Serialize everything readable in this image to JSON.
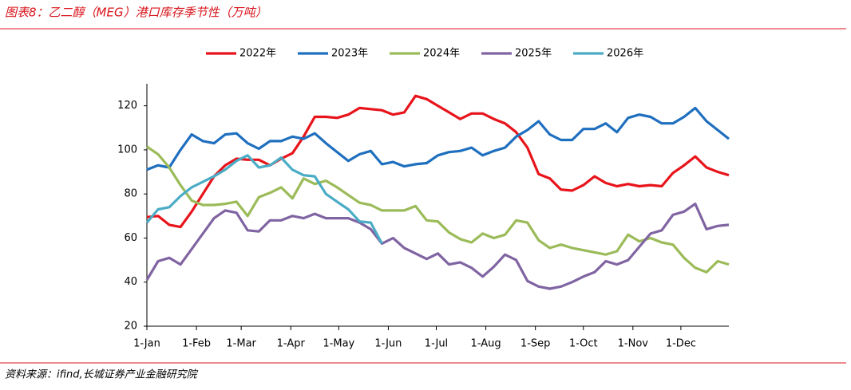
{
  "chart_data": {
    "type": "line",
    "title": "图表8：乙二醇（MEG）港口库存季节性（万吨）",
    "source": "资料来源：ifind,长城证券产业金融研究院",
    "x": [
      0,
      7,
      14,
      21,
      28,
      35,
      42,
      49,
      56,
      63,
      70,
      77,
      84,
      91,
      98,
      105,
      112,
      119,
      126,
      133,
      140,
      147,
      154,
      161,
      168,
      175,
      182,
      189,
      196,
      203,
      210,
      217,
      224,
      231,
      238,
      245,
      252,
      259,
      266,
      273,
      280,
      287,
      294,
      301,
      308,
      315,
      322,
      329,
      336,
      343,
      350,
      357,
      364
    ],
    "xlim": [
      0,
      364
    ],
    "xticks": [
      {
        "value": 0,
        "label": "1-Jan"
      },
      {
        "value": 31,
        "label": "1-Feb"
      },
      {
        "value": 59,
        "label": "1-Mar"
      },
      {
        "value": 90,
        "label": "1-Apr"
      },
      {
        "value": 120,
        "label": "1-May"
      },
      {
        "value": 151,
        "label": "1-Jun"
      },
      {
        "value": 181,
        "label": "1-Jul"
      },
      {
        "value": 212,
        "label": "1-Aug"
      },
      {
        "value": 243,
        "label": "1-Sep"
      },
      {
        "value": 273,
        "label": "1-Oct"
      },
      {
        "value": 304,
        "label": "1-Nov"
      },
      {
        "value": 334,
        "label": "1-Dec"
      }
    ],
    "ylim": [
      20,
      130
    ],
    "yticks": [
      20,
      40,
      60,
      80,
      100,
      120
    ],
    "legend": "top",
    "series": [
      {
        "name": "2022年",
        "color": "#e8141b",
        "values": [
          69.5,
          70,
          66,
          65,
          72,
          80,
          88,
          93,
          96,
          95.5,
          95.5,
          93,
          96,
          98.5,
          106,
          115,
          115,
          114.5,
          116,
          119,
          118.5,
          118,
          116,
          117,
          124.5,
          123,
          120,
          117,
          114,
          116.5,
          116.5,
          114,
          112,
          108,
          101,
          89,
          87,
          82,
          81.5,
          84,
          88,
          85,
          83.5,
          84.5,
          83.5,
          84,
          83.5,
          89.5,
          93,
          97,
          92,
          90,
          88.5
        ]
      },
      {
        "name": "2023年",
        "color": "#1f6fbf",
        "values": [
          91,
          93,
          92,
          100,
          107,
          104,
          103,
          107,
          107.5,
          103,
          100.5,
          104,
          104,
          106,
          105,
          107.5,
          103,
          99,
          95,
          98,
          99.5,
          93.5,
          94.5,
          92.5,
          93.5,
          94,
          97.5,
          99,
          99.5,
          101,
          97.5,
          99.5,
          101,
          106,
          109,
          113,
          107,
          104.5,
          104.5,
          109.5,
          109.5,
          112,
          108,
          114.5,
          116,
          115,
          112,
          112,
          115,
          119,
          113,
          109,
          105
        ]
      },
      {
        "name": "2024年",
        "color": "#9bbb59",
        "values": [
          101.5,
          98,
          92,
          84,
          77,
          75,
          75,
          75.5,
          76.5,
          70,
          78.5,
          80.5,
          83,
          78,
          87,
          84.5,
          86,
          83,
          79.5,
          76,
          75,
          72.5,
          72.5,
          72.5,
          74.5,
          68,
          67.5,
          62.5,
          59.5,
          58,
          62,
          60,
          61.5,
          68,
          67,
          59,
          55.5,
          57,
          55.5,
          54.5,
          53.5,
          52.5,
          54,
          61.5,
          58.5,
          60,
          58,
          57,
          51,
          46.5,
          44.5,
          49.5,
          48
        ]
      },
      {
        "name": "2025年",
        "color": "#8064a2",
        "values": [
          41,
          49.5,
          51,
          48,
          55,
          62,
          69,
          72.5,
          71.5,
          63.5,
          63,
          68,
          68,
          70,
          69,
          71,
          69,
          69,
          69,
          67,
          64,
          57.5,
          60,
          55.5,
          53,
          50.5,
          53,
          48,
          49,
          46.5,
          42.5,
          47,
          52.5,
          50,
          40.5,
          38,
          37,
          38,
          40,
          42.5,
          44.5,
          49.5,
          48,
          50,
          56,
          62,
          63.5,
          70.5,
          72,
          75.5,
          64,
          65.5,
          66
        ]
      },
      {
        "name": "2026年",
        "color": "#4bacc6",
        "values": [
          67,
          73,
          74,
          79,
          83,
          85.5,
          88,
          91,
          95,
          97.5,
          92,
          93,
          96.5,
          91,
          88.5,
          88,
          80,
          76.5,
          73,
          67.5,
          67,
          57.5,
          null,
          null,
          null,
          null,
          null,
          null,
          null,
          null,
          null,
          null,
          null,
          null,
          null,
          null,
          null,
          null,
          null,
          null,
          null,
          null,
          null,
          null,
          null,
          null,
          null,
          null,
          null,
          null,
          null,
          null,
          null
        ]
      }
    ]
  }
}
